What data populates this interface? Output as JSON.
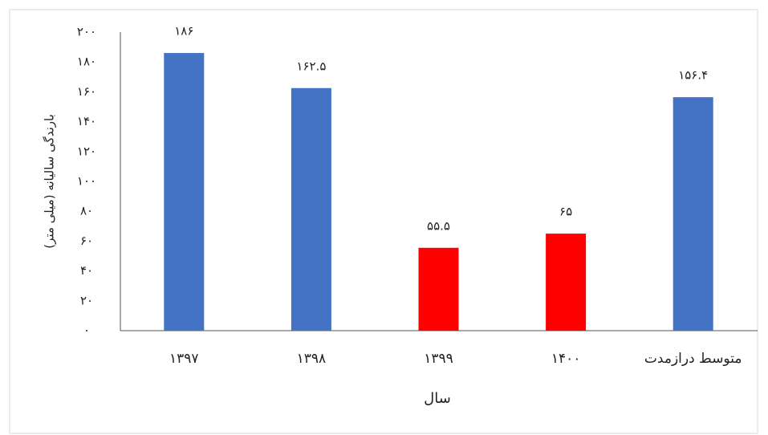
{
  "chart_data": {
    "type": "bar",
    "categories": [
      "۱۳۹۷",
      "۱۳۹۸",
      "۱۳۹۹",
      "۱۴۰۰",
      "متوسط درازمدت"
    ],
    "values": [
      186,
      162.5,
      55.5,
      65,
      156.4
    ],
    "value_labels": [
      "۱۸۶",
      "۱۶۲.۵",
      "۵۵.۵",
      "۶۵",
      "۱۵۶.۴"
    ],
    "colors": [
      "#4472c4",
      "#4472c4",
      "#ff0000",
      "#ff0000",
      "#4472c4"
    ],
    "ylim": [
      0,
      200
    ],
    "yticks": [
      {
        "value": 0,
        "label": "۰"
      },
      {
        "value": 20,
        "label": "۲۰"
      },
      {
        "value": 40,
        "label": "۴۰"
      },
      {
        "value": 60,
        "label": "۶۰"
      },
      {
        "value": 80,
        "label": "۸۰"
      },
      {
        "value": 100,
        "label": "۱۰۰"
      },
      {
        "value": 120,
        "label": "۱۲۰"
      },
      {
        "value": 140,
        "label": "۱۴۰"
      },
      {
        "value": 160,
        "label": "۱۶۰"
      },
      {
        "value": 180,
        "label": "۱۸۰"
      },
      {
        "value": 200,
        "label": "۲۰۰"
      }
    ],
    "ylabel": "بارندگی سالیانه (میلی متر)",
    "xlabel": "سال",
    "grid": false
  }
}
